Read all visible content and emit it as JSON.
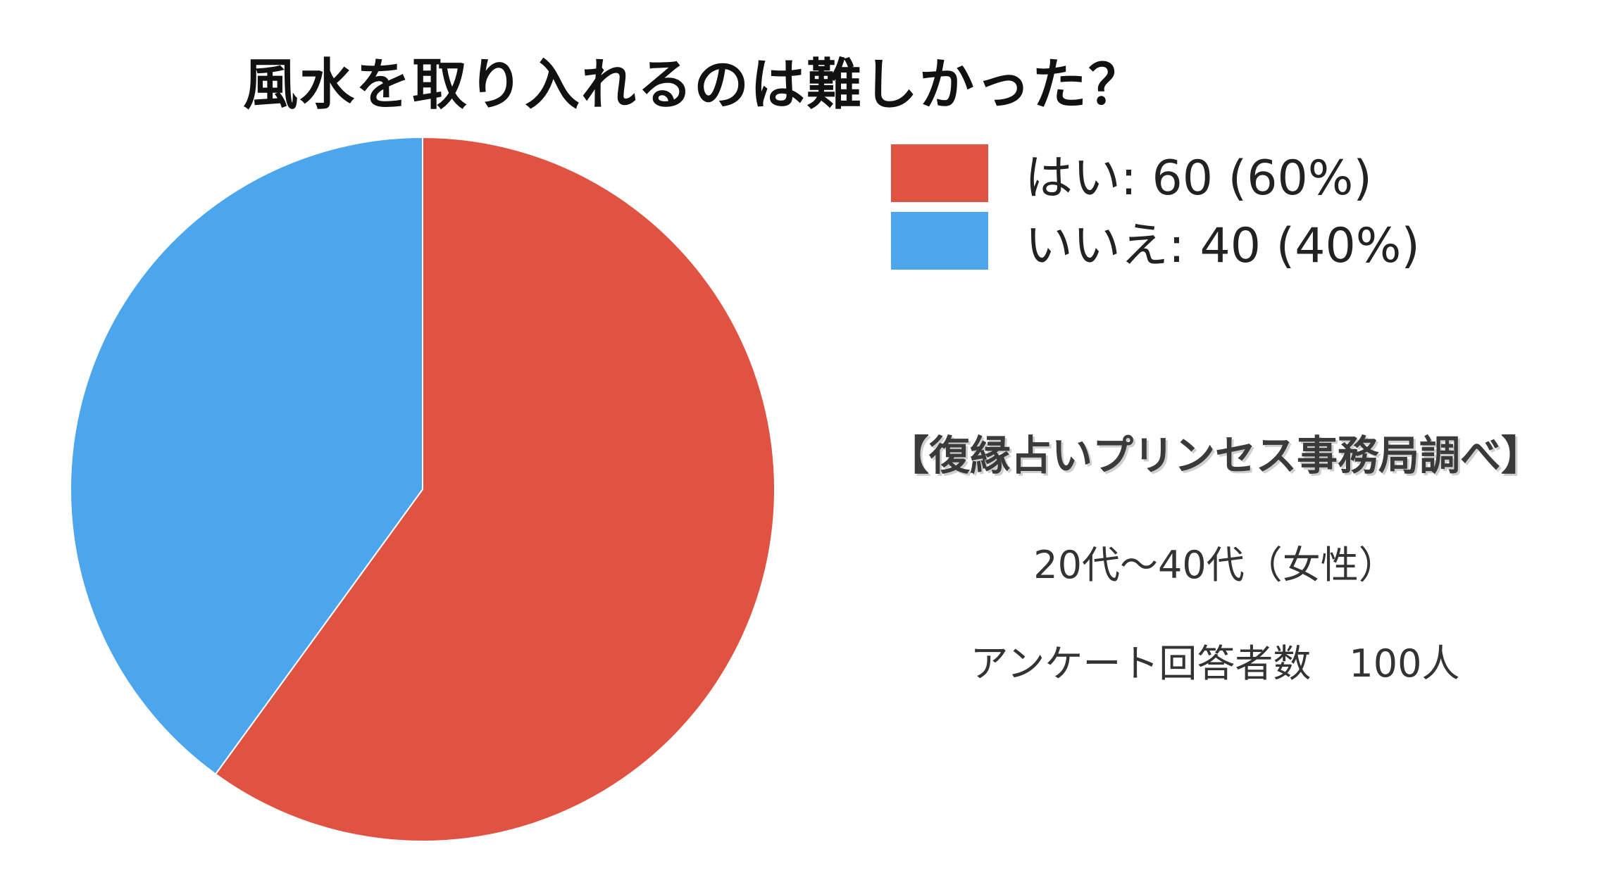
{
  "chart_data": {
    "type": "pie",
    "title": "風水を取り入れるのは難しかった？",
    "categories": [
      "はい",
      "いいえ"
    ],
    "values": [
      60,
      40
    ],
    "percentages": [
      60,
      40
    ],
    "colors": [
      "#E05343",
      "#4BA6EE"
    ],
    "legend_labels": [
      "はい: 60 (60%)",
      "いいえ: 40 (40%)"
    ],
    "legend_position": "right"
  },
  "source": "【復縁占いプリンセス事務局調べ】",
  "demographic": "20代〜40代（女性）",
  "respondents": "アンケート回答者数　100人"
}
